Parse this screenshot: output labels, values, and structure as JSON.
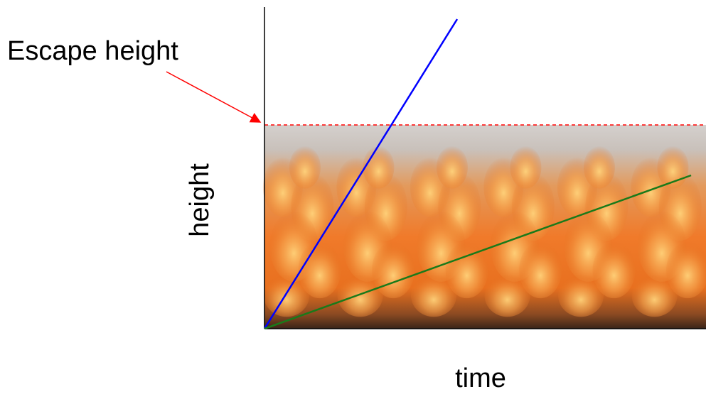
{
  "annotation": {
    "label": "Escape height"
  },
  "axes": {
    "ylabel": "height",
    "xlabel": "time"
  },
  "colors": {
    "axis": "#000000",
    "escape_line": "#ff0000",
    "fast_line": "#0000ff",
    "slow_line": "#1a7a1a",
    "fire_dark": "#3a1e10",
    "fire_orange": "#f07a2a",
    "fire_yellow": "#ffc060",
    "smoke": "#cfcac6"
  },
  "icons": {
    "background": "flame-texture",
    "pointer": "arrow"
  }
}
